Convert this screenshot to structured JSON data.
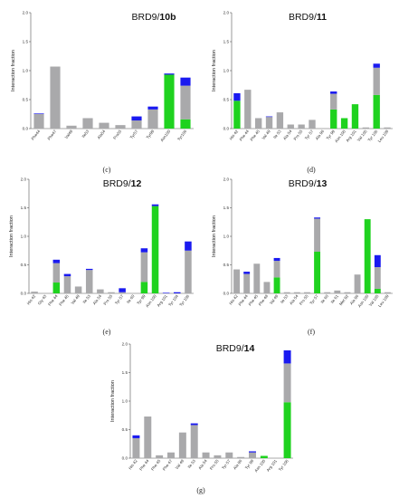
{
  "colors": {
    "gray": "#a9a9ab",
    "green": "#1fd21f",
    "blue": "#1a1af0"
  },
  "series_names": [
    "gray",
    "green",
    "blue"
  ],
  "chart_data": [
    {
      "id": "c",
      "type": "bar",
      "stacked": true,
      "title_prefix": "BRD9/",
      "title_bold": "10b",
      "ylabel": "Interaction fraction",
      "ylim": [
        0,
        2.0
      ],
      "yticks": [
        "0.0",
        "0.5",
        "1.0",
        "1.5",
        "2.0"
      ],
      "caption": "(c)",
      "categories": [
        "Phe44",
        "Phe47",
        "Val49",
        "Ile53",
        "Ala54",
        "Pro55",
        "Tyr57",
        "Tyr99",
        "Asn100",
        "Tyr106"
      ],
      "series": [
        {
          "values": [
            0.25,
            1.07,
            0.05,
            0.18,
            0.1,
            0.06,
            0.14,
            0.33,
            0.0,
            0.58
          ]
        },
        {
          "values": [
            0.0,
            0.0,
            0.0,
            0.0,
            0.0,
            0.0,
            0.0,
            0.0,
            0.93,
            0.16
          ]
        },
        {
          "values": [
            0.01,
            0.0,
            0.0,
            0.0,
            0.0,
            0.0,
            0.07,
            0.05,
            0.02,
            0.14
          ]
        }
      ]
    },
    {
      "id": "d",
      "type": "bar",
      "stacked": true,
      "title_prefix": "BRD9/",
      "title_bold": "11",
      "ylabel": "Interaction fraction",
      "ylim": [
        0,
        2.0
      ],
      "yticks": [
        "0.0",
        "0.5",
        "1.0",
        "1.5",
        "2.0"
      ],
      "caption": "(d)",
      "categories": [
        "His 42",
        "Phe 44",
        "Phe 45",
        "Val 49",
        "Ile 53",
        "Ala 54",
        "Pro 55",
        "Tyr 57",
        "Ala 96",
        "Tyr 99",
        "Asn 100",
        "Arg 101",
        "Val 105",
        "Tyr 106",
        "Leu 109"
      ],
      "series": [
        {
          "values": [
            0.0,
            0.67,
            0.18,
            0.2,
            0.28,
            0.07,
            0.07,
            0.15,
            0.0,
            0.27,
            0.0,
            0.0,
            0.02,
            0.47,
            0.02
          ]
        },
        {
          "values": [
            0.48,
            0.0,
            0.0,
            0.0,
            0.0,
            0.0,
            0.0,
            0.0,
            0.0,
            0.33,
            0.18,
            0.42,
            0.0,
            0.58,
            0.0
          ]
        },
        {
          "values": [
            0.13,
            0.0,
            0.0,
            0.01,
            0.0,
            0.0,
            0.0,
            0.0,
            0.0,
            0.04,
            0.0,
            0.0,
            0.0,
            0.07,
            0.0
          ]
        }
      ]
    },
    {
      "id": "e",
      "type": "bar",
      "stacked": true,
      "title_prefix": "BRD9/",
      "title_bold": "12",
      "ylabel": "Interaction fraction",
      "ylim": [
        0,
        2.0
      ],
      "yticks": [
        "0.0",
        "0.5",
        "1.0",
        "1.5",
        "2.0"
      ],
      "caption": "(e)",
      "categories": [
        "His 42",
        "Gly 43",
        "Phe 44",
        "Phe 45",
        "Val 49",
        "Ile 53",
        "Ala 54",
        "Pro 55",
        "Tyr 57",
        "Ile 60",
        "Tyr 99",
        "Asn 100",
        "Arg 101",
        "Tyr 104",
        "Tyr 106"
      ],
      "series": [
        {
          "values": [
            0.03,
            0.0,
            0.34,
            0.3,
            0.12,
            0.41,
            0.07,
            0.02,
            0.02,
            0.0,
            0.52,
            0.0,
            0.0,
            0.0,
            0.75
          ]
        },
        {
          "values": [
            0.0,
            0.0,
            0.19,
            0.0,
            0.0,
            0.0,
            0.0,
            0.0,
            0.0,
            0.0,
            0.2,
            1.53,
            0.0,
            0.0,
            0.0
          ]
        },
        {
          "values": [
            0.0,
            0.0,
            0.06,
            0.04,
            0.0,
            0.02,
            0.0,
            0.0,
            0.07,
            0.0,
            0.07,
            0.03,
            0.01,
            0.02,
            0.16
          ]
        }
      ]
    },
    {
      "id": "f",
      "type": "bar",
      "stacked": true,
      "title_prefix": "BRD9/",
      "title_bold": "13",
      "ylabel": "Interaction fraction",
      "ylim": [
        0,
        2.0
      ],
      "yticks": [
        "0.0",
        "0.5",
        "1.0",
        "1.5",
        "2.0"
      ],
      "caption": "(f)",
      "categories": [
        "His 42",
        "Phe 44",
        "Phe 45",
        "Phe 48",
        "Val 49",
        "Ile 53",
        "Ala 54",
        "Pro 55",
        "Tyr 57",
        "Ile 60",
        "Ile 61",
        "Met 92",
        "Ala 96",
        "Asn 100",
        "Val 105",
        "Leu 109"
      ],
      "series": [
        {
          "values": [
            0.42,
            0.34,
            0.52,
            0.2,
            0.29,
            0.02,
            0.02,
            0.02,
            0.58,
            0.02,
            0.05,
            0.02,
            0.33,
            0.0,
            0.38,
            0.02
          ]
        },
        {
          "values": [
            0.0,
            0.0,
            0.0,
            0.0,
            0.28,
            0.0,
            0.0,
            0.0,
            0.73,
            0.0,
            0.0,
            0.0,
            0.0,
            1.3,
            0.08,
            0.0
          ]
        },
        {
          "values": [
            0.0,
            0.04,
            0.0,
            0.0,
            0.05,
            0.0,
            0.0,
            0.0,
            0.02,
            0.0,
            0.0,
            0.0,
            0.0,
            0.0,
            0.21,
            0.0
          ]
        }
      ]
    },
    {
      "id": "g",
      "type": "bar",
      "stacked": true,
      "title_prefix": "BRD9/",
      "title_bold": "14",
      "ylabel": "Interaction fraction",
      "ylim": [
        0,
        2.0
      ],
      "yticks": [
        "0.0",
        "0.5",
        "1.0",
        "1.5",
        "2.0"
      ],
      "caption": "(g)",
      "categories": [
        "His 42",
        "Phe 44",
        "Phe 45",
        "Phe 47",
        "Val 49",
        "Ile 53",
        "Ala 54",
        "Pro 55",
        "Tyr 57",
        "Ala 96",
        "Tyr 99",
        "Asn 100",
        "Arg 101",
        "Tyr 106"
      ],
      "series": [
        {
          "values": [
            0.35,
            0.73,
            0.05,
            0.1,
            0.45,
            0.58,
            0.1,
            0.05,
            0.1,
            0.02,
            0.1,
            0.0,
            0.0,
            0.68
          ]
        },
        {
          "values": [
            0.0,
            0.0,
            0.0,
            0.0,
            0.0,
            0.0,
            0.0,
            0.0,
            0.0,
            0.0,
            0.0,
            0.04,
            0.0,
            0.98
          ]
        },
        {
          "values": [
            0.05,
            0.0,
            0.0,
            0.0,
            0.0,
            0.03,
            0.0,
            0.0,
            0.0,
            0.0,
            0.02,
            0.0,
            0.0,
            0.23
          ]
        }
      ]
    }
  ]
}
